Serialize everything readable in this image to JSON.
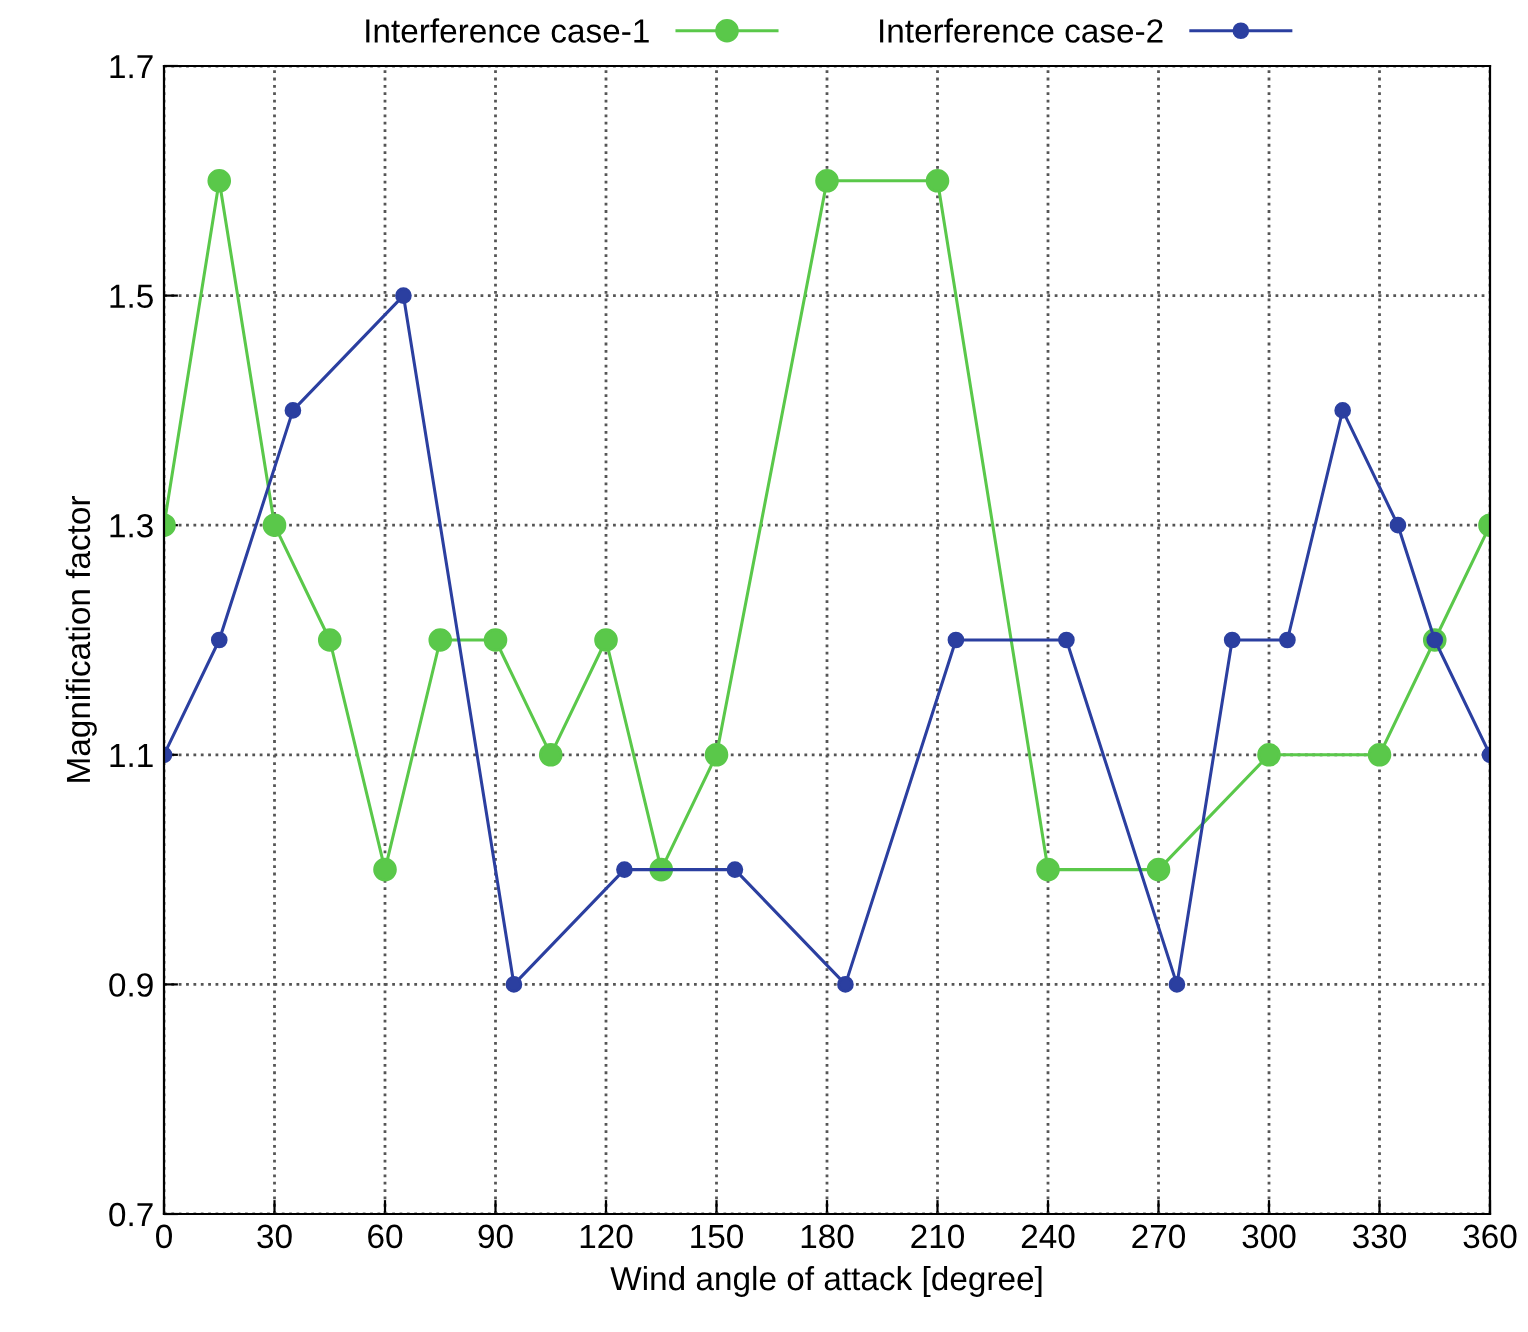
{
  "chart_data": {
    "type": "line",
    "xlabel": "Wind angle of attack [degree]",
    "ylabel": "Magnification factor",
    "xlim": [
      0,
      360
    ],
    "xticks": [
      0,
      30,
      60,
      90,
      120,
      150,
      180,
      210,
      240,
      270,
      300,
      330,
      360
    ],
    "ylim": [
      0.7,
      1.7
    ],
    "yticks": [
      0.7,
      0.9,
      1.1,
      1.3,
      1.5,
      1.7
    ],
    "grid": true,
    "legend": "top",
    "marker": "circle",
    "line_style": "solid",
    "series": [
      {
        "name": "Interference case-1",
        "color": "#5ac84a",
        "x": [
          0,
          15,
          30,
          45,
          60,
          75,
          90,
          105,
          120,
          135,
          150,
          180,
          210,
          240,
          270,
          300,
          330,
          345,
          360
        ],
        "values": [
          1.3,
          1.6,
          1.3,
          1.2,
          1.0,
          1.2,
          1.2,
          1.1,
          1.2,
          1.0,
          1.1,
          1.6,
          1.6,
          1.0,
          1.0,
          1.1,
          1.1,
          1.2,
          1.3
        ]
      },
      {
        "name": "Interference case-2",
        "color": "#2b3fa0",
        "x": [
          0,
          15,
          35,
          65,
          95,
          125,
          155,
          185,
          215,
          245,
          275,
          290,
          305,
          320,
          335,
          345,
          360
        ],
        "values": [
          1.1,
          1.2,
          1.4,
          1.5,
          0.9,
          1.0,
          1.0,
          0.9,
          1.2,
          1.2,
          0.9,
          1.2,
          1.2,
          1.4,
          1.3,
          1.2,
          1.1
        ]
      }
    ]
  }
}
